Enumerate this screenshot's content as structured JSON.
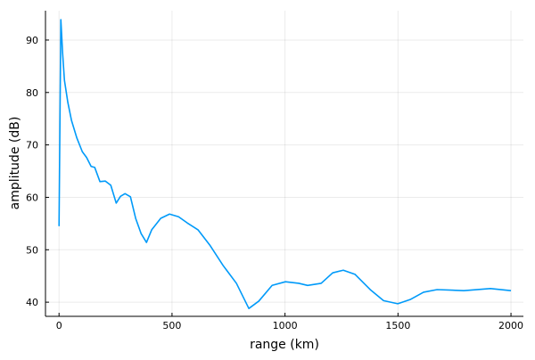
{
  "chart_data": {
    "type": "line",
    "xlabel": "range (km)",
    "ylabel": "amplitude (dB)",
    "x": [
      0,
      8,
      16,
      24,
      39,
      55,
      79,
      103,
      122,
      142,
      158,
      181,
      205,
      229,
      253,
      272,
      292,
      316,
      339,
      363,
      387,
      410,
      450,
      489,
      529,
      568,
      615,
      667,
      726,
      785,
      840,
      884,
      943,
      1002,
      1061,
      1100,
      1160,
      1211,
      1258,
      1310,
      1377,
      1436,
      1499,
      1554,
      1613,
      1673,
      1791,
      1909,
      2000
    ],
    "series": [
      {
        "color": "#009af9",
        "values": [
          54.5,
          93.9,
          87.4,
          82.3,
          78.1,
          74.7,
          71.3,
          68.7,
          67.6,
          65.9,
          65.7,
          63.0,
          63.1,
          62.3,
          58.9,
          60.2,
          60.7,
          60.1,
          56.0,
          53.1,
          51.4,
          53.8,
          56.0,
          56.8,
          56.3,
          55.1,
          53.8,
          50.9,
          47.0,
          43.6,
          38.8,
          40.2,
          43.2,
          43.9,
          43.6,
          43.2,
          43.6,
          45.6,
          46.1,
          45.3,
          42.4,
          40.3,
          39.7,
          40.5,
          41.9,
          42.4,
          42.2,
          42.6,
          42.2
        ]
      }
    ],
    "xlim": [
      -60,
      2055
    ],
    "ylim": [
      37.3,
      95.6
    ],
    "xticks": [
      0,
      500,
      1000,
      1500,
      2000
    ],
    "yticks": [
      40,
      50,
      60,
      70,
      80,
      90
    ],
    "grid": true
  }
}
